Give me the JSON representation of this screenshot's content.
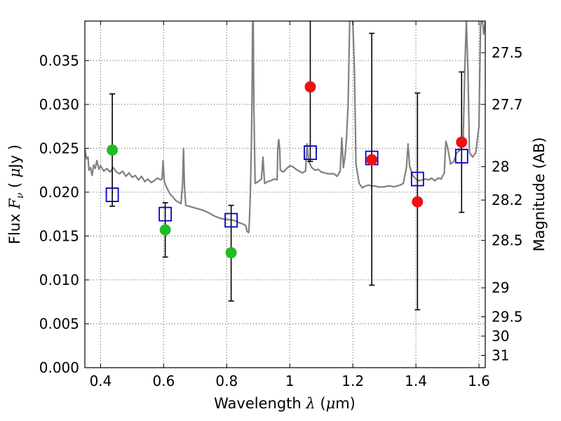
{
  "chart_data": {
    "type": "scatter",
    "title": "",
    "xlabel": "Wavelength  λ (μm)",
    "ylabel": "Flux  F_ν  ( μJy )",
    "ylabel_parts": {
      "pre": "Flux  ",
      "var": "F",
      "sub": "ν",
      "open": "  ( ",
      "mu": "μ",
      "post": "Jy )"
    },
    "xlabel_parts": {
      "pre": "Wavelength  ",
      "var": "λ",
      "open": " (",
      "mu": "μ",
      "post": "m)"
    },
    "ylabel_right": "Magnitude (AB)",
    "xlim": [
      0.35,
      1.62
    ],
    "ylim": [
      0.0,
      0.0395
    ],
    "grid": true,
    "x_ticks": [
      0.4,
      0.6,
      0.8,
      1.0,
      1.2,
      1.4,
      1.6
    ],
    "x_tick_labels": [
      "0.4",
      "0.6",
      "0.8",
      "1",
      "1.2",
      "1.4",
      "1.6"
    ],
    "y_ticks": [
      0.0,
      0.005,
      0.01,
      0.015,
      0.02,
      0.025,
      0.03,
      0.035
    ],
    "y_tick_labels": [
      "0.000",
      "0.005",
      "0.010",
      "0.015",
      "0.020",
      "0.025",
      "0.030",
      "0.035"
    ],
    "mag_ticks": [
      {
        "label": "27.5",
        "flux": 0.0359
      },
      {
        "label": "27.7",
        "flux": 0.03
      },
      {
        "label": "28",
        "flux": 0.0229
      },
      {
        "label": "28.2",
        "flux": 0.0191
      },
      {
        "label": "28.5",
        "flux": 0.0145
      },
      {
        "label": "29",
        "flux": 0.0091
      },
      {
        "label": "29.5",
        "flux": 0.0058
      },
      {
        "label": "30",
        "flux": 0.0036
      },
      {
        "label": "31",
        "flux": 0.0014
      }
    ],
    "colors": {
      "sed": "#808080",
      "model": "#0000cc",
      "optical": "#22bb22",
      "infrared": "#ee1111",
      "errorbar": "#000000",
      "grid": "#555555"
    },
    "series": [
      {
        "kind": "model_sed_line",
        "points": [
          [
            0.35,
            0.0249
          ],
          [
            0.355,
            0.0238
          ],
          [
            0.36,
            0.024
          ],
          [
            0.363,
            0.0225
          ],
          [
            0.368,
            0.0228
          ],
          [
            0.373,
            0.0219
          ],
          [
            0.378,
            0.0231
          ],
          [
            0.383,
            0.0227
          ],
          [
            0.388,
            0.0236
          ],
          [
            0.395,
            0.0226
          ],
          [
            0.4,
            0.023
          ],
          [
            0.41,
            0.0224
          ],
          [
            0.42,
            0.0227
          ],
          [
            0.43,
            0.0223
          ],
          [
            0.44,
            0.0228
          ],
          [
            0.45,
            0.0223
          ],
          [
            0.46,
            0.0221
          ],
          [
            0.47,
            0.0224
          ],
          [
            0.48,
            0.0218
          ],
          [
            0.49,
            0.0222
          ],
          [
            0.5,
            0.0217
          ],
          [
            0.51,
            0.0219
          ],
          [
            0.52,
            0.0214
          ],
          [
            0.53,
            0.0218
          ],
          [
            0.54,
            0.0212
          ],
          [
            0.55,
            0.0215
          ],
          [
            0.56,
            0.0211
          ],
          [
            0.57,
            0.0213
          ],
          [
            0.58,
            0.0216
          ],
          [
            0.59,
            0.0214
          ],
          [
            0.595,
            0.0215
          ],
          [
            0.598,
            0.0236
          ],
          [
            0.602,
            0.0212
          ],
          [
            0.61,
            0.0205
          ],
          [
            0.62,
            0.0198
          ],
          [
            0.63,
            0.0194
          ],
          [
            0.64,
            0.019
          ],
          [
            0.65,
            0.0188
          ],
          [
            0.655,
            0.0187
          ],
          [
            0.66,
            0.021
          ],
          [
            0.663,
            0.025
          ],
          [
            0.666,
            0.0205
          ],
          [
            0.67,
            0.0185
          ],
          [
            0.68,
            0.0184
          ],
          [
            0.7,
            0.0182
          ],
          [
            0.72,
            0.018
          ],
          [
            0.74,
            0.0177
          ],
          [
            0.76,
            0.0173
          ],
          [
            0.78,
            0.017
          ],
          [
            0.8,
            0.0169
          ],
          [
            0.82,
            0.0168
          ],
          [
            0.83,
            0.0167
          ],
          [
            0.84,
            0.0165
          ],
          [
            0.85,
            0.0164
          ],
          [
            0.86,
            0.0162
          ],
          [
            0.865,
            0.0155
          ],
          [
            0.87,
            0.0154
          ],
          [
            0.872,
            0.0168
          ],
          [
            0.875,
            0.02
          ],
          [
            0.878,
            0.025
          ],
          [
            0.88,
            0.03
          ],
          [
            0.882,
            0.039
          ],
          [
            0.884,
            0.04
          ],
          [
            0.886,
            0.03
          ],
          [
            0.89,
            0.021
          ],
          [
            0.9,
            0.0212
          ],
          [
            0.91,
            0.0215
          ],
          [
            0.915,
            0.024
          ],
          [
            0.92,
            0.021
          ],
          [
            0.93,
            0.0212
          ],
          [
            0.94,
            0.0213
          ],
          [
            0.95,
            0.0215
          ],
          [
            0.96,
            0.0214
          ],
          [
            0.962,
            0.025
          ],
          [
            0.965,
            0.026
          ],
          [
            0.968,
            0.025
          ],
          [
            0.97,
            0.0225
          ],
          [
            0.98,
            0.0223
          ],
          [
            0.99,
            0.0227
          ],
          [
            1.0,
            0.023
          ],
          [
            1.01,
            0.0229
          ],
          [
            1.02,
            0.0226
          ],
          [
            1.03,
            0.0224
          ],
          [
            1.04,
            0.0222
          ],
          [
            1.05,
            0.0224
          ],
          [
            1.055,
            0.0255
          ],
          [
            1.06,
            0.0235
          ],
          [
            1.07,
            0.0228
          ],
          [
            1.08,
            0.0225
          ],
          [
            1.09,
            0.0226
          ],
          [
            1.1,
            0.0223
          ],
          [
            1.11,
            0.0222
          ],
          [
            1.12,
            0.0221
          ],
          [
            1.13,
            0.0221
          ],
          [
            1.14,
            0.0221
          ],
          [
            1.15,
            0.0218
          ],
          [
            1.16,
            0.0224
          ],
          [
            1.165,
            0.0262
          ],
          [
            1.17,
            0.0228
          ],
          [
            1.175,
            0.024
          ],
          [
            1.18,
            0.0262
          ],
          [
            1.185,
            0.03
          ],
          [
            1.19,
            0.0395
          ],
          [
            1.195,
            0.04
          ],
          [
            1.2,
            0.0395
          ],
          [
            1.205,
            0.034
          ],
          [
            1.21,
            0.0232
          ],
          [
            1.22,
            0.021
          ],
          [
            1.23,
            0.0205
          ],
          [
            1.24,
            0.0207
          ],
          [
            1.25,
            0.0208
          ],
          [
            1.26,
            0.0207
          ],
          [
            1.27,
            0.0207
          ],
          [
            1.28,
            0.0206
          ],
          [
            1.29,
            0.0206
          ],
          [
            1.3,
            0.0206
          ],
          [
            1.31,
            0.0207
          ],
          [
            1.32,
            0.0207
          ],
          [
            1.33,
            0.0206
          ],
          [
            1.34,
            0.0207
          ],
          [
            1.35,
            0.0208
          ],
          [
            1.36,
            0.021
          ],
          [
            1.37,
            0.0228
          ],
          [
            1.375,
            0.0255
          ],
          [
            1.38,
            0.023
          ],
          [
            1.39,
            0.0219
          ],
          [
            1.4,
            0.0215
          ],
          [
            1.41,
            0.0213
          ],
          [
            1.42,
            0.0214
          ],
          [
            1.43,
            0.0215
          ],
          [
            1.44,
            0.0214
          ],
          [
            1.45,
            0.0216
          ],
          [
            1.46,
            0.0213
          ],
          [
            1.47,
            0.0216
          ],
          [
            1.48,
            0.0215
          ],
          [
            1.49,
            0.0222
          ],
          [
            1.495,
            0.0258
          ],
          [
            1.5,
            0.0252
          ],
          [
            1.51,
            0.0232
          ],
          [
            1.52,
            0.0235
          ],
          [
            1.53,
            0.0245
          ],
          [
            1.54,
            0.0248
          ],
          [
            1.55,
            0.026
          ],
          [
            1.555,
            0.034
          ],
          [
            1.56,
            0.0395
          ],
          [
            1.565,
            0.034
          ],
          [
            1.57,
            0.0245
          ],
          [
            1.58,
            0.024
          ],
          [
            1.59,
            0.0245
          ],
          [
            1.6,
            0.0275
          ],
          [
            1.605,
            0.039
          ],
          [
            1.61,
            0.04
          ],
          [
            1.615,
            0.038
          ],
          [
            1.62,
            0.0395
          ]
        ]
      },
      {
        "kind": "model_squares",
        "points": [
          [
            0.437,
            0.0197
          ],
          [
            0.605,
            0.0175
          ],
          [
            0.814,
            0.0168
          ],
          [
            1.065,
            0.0245
          ],
          [
            1.26,
            0.0239
          ],
          [
            1.405,
            0.0215
          ],
          [
            1.545,
            0.0241
          ]
        ]
      },
      {
        "kind": "optical_detections",
        "points": [
          {
            "x": 0.437,
            "y": 0.0248,
            "lo": 0.0184,
            "hi": 0.0312
          },
          {
            "x": 0.605,
            "y": 0.0157,
            "lo": 0.0126,
            "hi": 0.0188
          },
          {
            "x": 0.814,
            "y": 0.0131,
            "lo": 0.0076,
            "hi": 0.0185
          }
        ]
      },
      {
        "kind": "infrared_detections",
        "points": [
          {
            "x": 1.065,
            "y": 0.032,
            "lo": 0.0235,
            "hi": 0.0405
          },
          {
            "x": 1.26,
            "y": 0.0237,
            "lo": 0.0094,
            "hi": 0.0381
          },
          {
            "x": 1.405,
            "y": 0.0189,
            "lo": 0.0066,
            "hi": 0.0313
          },
          {
            "x": 1.545,
            "y": 0.0257,
            "lo": 0.0177,
            "hi": 0.0337
          }
        ]
      }
    ]
  }
}
